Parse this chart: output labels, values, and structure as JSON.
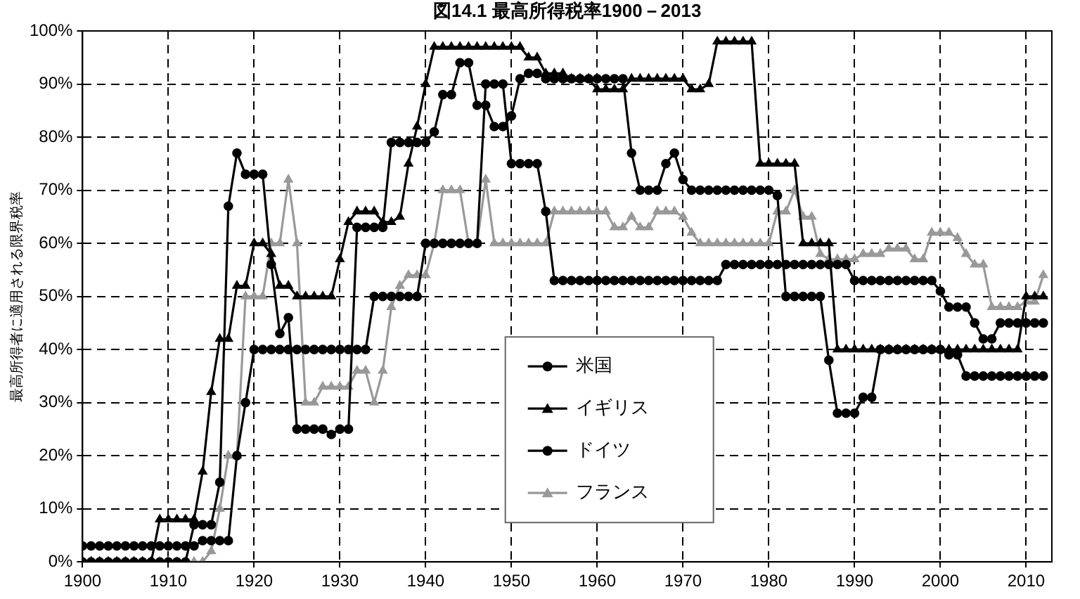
{
  "chart_data": {
    "type": "line",
    "title": "図14.1 最高所得税率1900－2013",
    "ylabel": "最高所得者に適用される限界税率",
    "x": [
      1900,
      1901,
      1902,
      1903,
      1904,
      1905,
      1906,
      1907,
      1908,
      1909,
      1910,
      1911,
      1912,
      1913,
      1914,
      1915,
      1916,
      1917,
      1918,
      1919,
      1920,
      1921,
      1922,
      1923,
      1924,
      1925,
      1926,
      1927,
      1928,
      1929,
      1930,
      1931,
      1932,
      1933,
      1934,
      1935,
      1936,
      1937,
      1938,
      1939,
      1940,
      1941,
      1942,
      1943,
      1944,
      1945,
      1946,
      1947,
      1948,
      1949,
      1950,
      1951,
      1952,
      1953,
      1954,
      1955,
      1956,
      1957,
      1958,
      1959,
      1960,
      1961,
      1962,
      1963,
      1964,
      1965,
      1966,
      1967,
      1968,
      1969,
      1970,
      1971,
      1972,
      1973,
      1974,
      1975,
      1976,
      1977,
      1978,
      1979,
      1980,
      1981,
      1982,
      1983,
      1984,
      1985,
      1986,
      1987,
      1988,
      1989,
      1990,
      1991,
      1992,
      1993,
      1994,
      1995,
      1996,
      1997,
      1998,
      1999,
      2000,
      2001,
      2002,
      2003,
      2004,
      2005,
      2006,
      2007,
      2008,
      2009,
      2010,
      2011,
      2012
    ],
    "series": [
      {
        "name": "米国",
        "color": "#000000",
        "marker": "circle",
        "values": [
          0,
          0,
          0,
          0,
          0,
          0,
          0,
          0,
          0,
          0,
          0,
          0,
          0,
          7,
          7,
          7,
          15,
          67,
          77,
          73,
          73,
          73,
          56,
          43,
          46,
          25,
          25,
          25,
          25,
          24,
          25,
          25,
          63,
          63,
          63,
          63,
          79,
          79,
          79,
          79,
          79,
          81,
          88,
          88,
          94,
          94,
          86,
          86,
          82,
          82,
          84,
          91,
          92,
          92,
          91,
          91,
          91,
          91,
          91,
          91,
          91,
          91,
          91,
          91,
          77,
          70,
          70,
          70,
          75,
          77,
          72,
          70,
          70,
          70,
          70,
          70,
          70,
          70,
          70,
          70,
          70,
          69,
          50,
          50,
          50,
          50,
          50,
          38,
          28,
          28,
          28,
          31,
          31,
          40,
          40,
          40,
          40,
          40,
          40,
          40,
          40,
          39,
          39,
          35,
          35,
          35,
          35,
          35,
          35,
          35,
          35,
          35,
          35
        ]
      },
      {
        "name": "イギリス",
        "color": "#000000",
        "marker": "triangle",
        "values": [
          0,
          0,
          0,
          0,
          0,
          0,
          0,
          0,
          0,
          8,
          8,
          8,
          8,
          8,
          17,
          32,
          42,
          42,
          52,
          52,
          60,
          60,
          58,
          52,
          52,
          50,
          50,
          50,
          50,
          50,
          57,
          64,
          66,
          66,
          66,
          64,
          64,
          65,
          75,
          82,
          90,
          97,
          97,
          97,
          97,
          97,
          97,
          97,
          97,
          97,
          97,
          97,
          95,
          95,
          92,
          92,
          92,
          91,
          91,
          91,
          89,
          89,
          89,
          89,
          91,
          91,
          91,
          91,
          91,
          91,
          91,
          89,
          89,
          90,
          98,
          98,
          98,
          98,
          98,
          75,
          75,
          75,
          75,
          75,
          60,
          60,
          60,
          60,
          40,
          40,
          40,
          40,
          40,
          40,
          40,
          40,
          40,
          40,
          40,
          40,
          40,
          40,
          40,
          40,
          40,
          40,
          40,
          40,
          40,
          40,
          50,
          50,
          50
        ]
      },
      {
        "name": "ドイツ",
        "color": "#000000",
        "marker": "circle",
        "values": [
          3,
          3,
          3,
          3,
          3,
          3,
          3,
          3,
          3,
          3,
          3,
          3,
          3,
          3,
          4,
          4,
          4,
          4,
          20,
          30,
          40,
          40,
          40,
          40,
          40,
          40,
          40,
          40,
          40,
          40,
          40,
          40,
          40,
          40,
          50,
          50,
          50,
          50,
          50,
          50,
          60,
          60,
          60,
          60,
          60,
          60,
          60,
          90,
          90,
          90,
          75,
          75,
          75,
          75,
          66,
          53,
          53,
          53,
          53,
          53,
          53,
          53,
          53,
          53,
          53,
          53,
          53,
          53,
          53,
          53,
          53,
          53,
          53,
          53,
          53,
          56,
          56,
          56,
          56,
          56,
          56,
          56,
          56,
          56,
          56,
          56,
          56,
          56,
          56,
          56,
          53,
          53,
          53,
          53,
          53,
          53,
          53,
          53,
          53,
          53,
          51,
          48,
          48,
          48,
          45,
          42,
          42,
          45,
          45,
          45,
          45,
          45,
          45
        ]
      },
      {
        "name": "フランス",
        "color": "#999999",
        "marker": "triangle",
        "values": [
          0,
          0,
          0,
          0,
          0,
          0,
          0,
          0,
          0,
          0,
          0,
          0,
          0,
          0,
          0,
          2,
          10,
          20,
          20,
          50,
          50,
          50,
          60,
          60,
          72,
          60,
          30,
          30,
          33,
          33,
          33,
          33,
          36,
          36,
          30,
          36,
          48,
          52,
          54,
          54,
          54,
          60,
          70,
          70,
          70,
          60,
          60,
          72,
          60,
          60,
          60,
          60,
          60,
          60,
          60,
          66,
          66,
          66,
          66,
          66,
          66,
          66,
          63,
          63,
          65,
          63,
          63,
          66,
          66,
          66,
          65,
          62,
          60,
          60,
          60,
          60,
          60,
          60,
          60,
          60,
          60,
          66,
          66,
          70,
          65,
          65,
          58,
          57,
          57,
          57,
          57,
          58,
          58,
          58,
          59,
          59,
          59,
          57,
          57,
          62,
          62,
          62,
          61,
          58,
          56,
          56,
          48,
          48,
          48,
          48,
          49,
          49,
          54
        ]
      }
    ],
    "xlim": [
      1900,
      2013
    ],
    "xticks": [
      1900,
      1910,
      1920,
      1930,
      1940,
      1950,
      1960,
      1970,
      1980,
      1990,
      2000,
      2010
    ],
    "ylim": [
      0,
      100
    ],
    "yticks": [
      {
        "value": 0,
        "label": "0%"
      },
      {
        "value": 10,
        "label": "10%"
      },
      {
        "value": 20,
        "label": "20%"
      },
      {
        "value": 30,
        "label": "30%"
      },
      {
        "value": 40,
        "label": "40%"
      },
      {
        "value": 50,
        "label": "50%"
      },
      {
        "value": 60,
        "label": "60%"
      },
      {
        "value": 70,
        "label": "70%"
      },
      {
        "value": 80,
        "label": "80%"
      },
      {
        "value": 90,
        "label": "90%"
      },
      {
        "value": 100,
        "label": "100%"
      }
    ],
    "grid": true,
    "legend": "bottom",
    "line_style": "solid"
  }
}
